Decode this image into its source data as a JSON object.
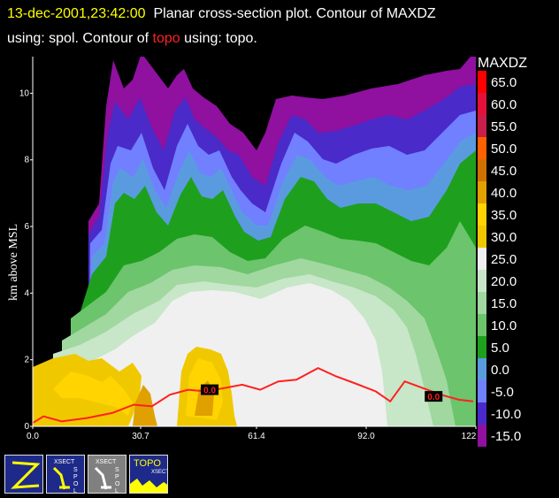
{
  "header": {
    "line1_time": "13-dec-2001,23:42:00",
    "line1_rest": "Planar cross-section plot.  Contour of MAXDZ",
    "line2_a": "using: spol.  Contour of ",
    "line2_topo": "topo",
    "line2_b": " using: topo."
  },
  "chart_data": {
    "type": "heatmap",
    "ylabel": "km above MSL",
    "x_ticks": [
      "0.0",
      "30.7",
      "61.4",
      "92.0",
      "122"
    ],
    "y_ticks": [
      "0",
      "2",
      "4",
      "6",
      "8",
      "10"
    ],
    "xlim": [
      0,
      122.7
    ],
    "ylim": [
      0,
      11.1
    ],
    "legend_title": "MAXDZ",
    "legend_levels": [
      "65.0",
      "60.0",
      "55.0",
      "50.0",
      "45.0",
      "40.0",
      "35.0",
      "30.0",
      "25.0",
      "20.0",
      "15.0",
      "10.0",
      "5.0",
      "0.0",
      "-5.0",
      "-10.0",
      "-15.0"
    ],
    "legend_colors": [
      "#ff0000",
      "#e4103a",
      "#c81e4a",
      "#ff6000",
      "#d07000",
      "#e0a000",
      "#ffd400",
      "#f0c800",
      "#f0f0f0",
      "#c8e6c8",
      "#a0d8a0",
      "#6cc46c",
      "#1ea01e",
      "#5a9be0",
      "#7080ff",
      "#4a2ac8",
      "#9010a0"
    ],
    "topo_line": {
      "name": "topo",
      "color": "#ff2020",
      "points": [
        [
          0,
          0.1
        ],
        [
          3,
          0.3
        ],
        [
          8,
          0.15
        ],
        [
          15,
          0.25
        ],
        [
          22,
          0.4
        ],
        [
          28,
          0.65
        ],
        [
          33,
          0.6
        ],
        [
          38,
          0.95
        ],
        [
          43,
          1.1
        ],
        [
          48,
          1.05
        ],
        [
          53,
          1.15
        ],
        [
          58,
          1.25
        ],
        [
          63,
          1.1
        ],
        [
          68,
          1.35
        ],
        [
          73,
          1.4
        ],
        [
          79,
          1.75
        ],
        [
          84,
          1.5
        ],
        [
          89,
          1.3
        ],
        [
          95,
          1.05
        ],
        [
          99,
          0.75
        ],
        [
          103,
          1.35
        ],
        [
          108,
          1.15
        ],
        [
          113,
          0.95
        ],
        [
          118,
          0.8
        ],
        [
          122,
          0.75
        ]
      ],
      "label": "0.0"
    }
  },
  "toolbar": {
    "buttons": [
      {
        "name": "zoom-button",
        "label": "Z"
      },
      {
        "name": "xsect-spol-button-1",
        "label": "XSECT SPOL"
      },
      {
        "name": "xsect-spol-button-2",
        "label": "XSECT SPOL"
      },
      {
        "name": "topo-xsect-button",
        "label": "TOPO XSECT"
      }
    ]
  }
}
